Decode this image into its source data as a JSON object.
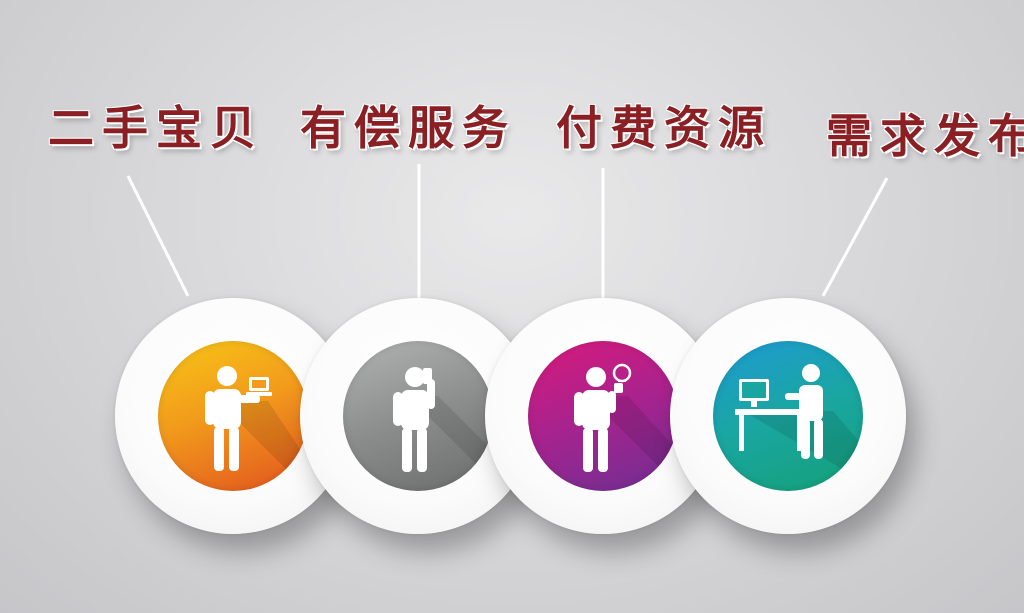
{
  "items": [
    {
      "label": "二手宝贝",
      "icon": "person-laptop-icon",
      "color": "#f29b1c"
    },
    {
      "label": "有偿服务",
      "icon": "person-phone-icon",
      "color": "#8c8d8d"
    },
    {
      "label": "付费资源",
      "icon": "person-lightbulb-icon",
      "color": "#a6238e"
    },
    {
      "label": "需求发布",
      "icon": "person-desk-computer-icon",
      "color": "#1aa6a0"
    }
  ]
}
